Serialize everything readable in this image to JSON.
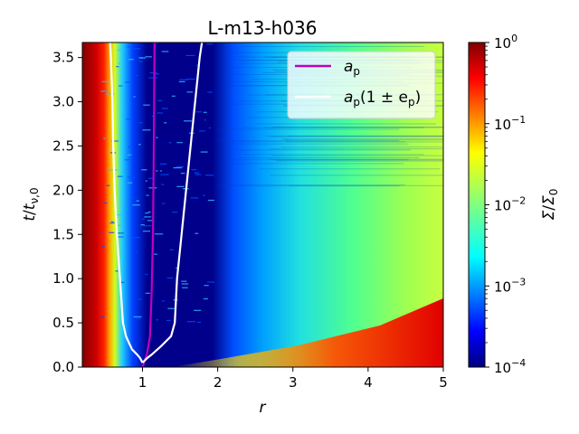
{
  "chart_data": {
    "type": "heatmap",
    "title": "L-m13-h036",
    "xlabel": "r",
    "ylabel": "t/t_{ν,0}",
    "xlim": [
      0.2,
      5.0
    ],
    "ylim": [
      0.0,
      3.67
    ],
    "x_ticks": [
      1,
      2,
      3,
      4,
      5
    ],
    "y_ticks": [
      0.0,
      0.5,
      1.0,
      1.5,
      2.0,
      2.5,
      3.0,
      3.5
    ],
    "colormap": "jet",
    "color_scale": "log",
    "colorbar": {
      "label": "Σ/Σ_0",
      "range": [
        0.0001,
        1.0
      ],
      "ticks": [
        {
          "value": 1.0,
          "base": "10",
          "exp": "0"
        },
        {
          "value": 0.1,
          "base": "10",
          "exp": "−1"
        },
        {
          "value": 0.01,
          "base": "10",
          "exp": "−2"
        },
        {
          "value": 0.001,
          "base": "10",
          "exp": "−3"
        },
        {
          "value": 0.0001,
          "base": "10",
          "exp": "−4"
        }
      ]
    },
    "legend": {
      "position": "top-right",
      "entries": [
        {
          "label_main": "a",
          "label_sub": "p",
          "label_rest": "",
          "color": "#bf00bf"
        },
        {
          "label_main": "a",
          "label_sub": "p",
          "label_rest": "(1 ± e",
          "label_sub2": "p",
          "label_end": ")",
          "color": "#ffffff"
        }
      ]
    },
    "series": [
      {
        "name": "a_p",
        "color": "#bf00bf",
        "points": [
          [
            1.0,
            0.0
          ],
          [
            1.02,
            0.05
          ],
          [
            1.06,
            0.15
          ],
          [
            1.1,
            0.35
          ],
          [
            1.12,
            0.8
          ],
          [
            1.14,
            1.5
          ],
          [
            1.15,
            2.5
          ],
          [
            1.16,
            3.67
          ]
        ]
      },
      {
        "name": "a_p(1-e_p)",
        "color": "#ffffff",
        "points": [
          [
            1.0,
            0.05
          ],
          [
            0.97,
            0.1
          ],
          [
            0.93,
            0.14
          ],
          [
            0.86,
            0.2
          ],
          [
            0.78,
            0.35
          ],
          [
            0.74,
            0.5
          ],
          [
            0.7,
            1.0
          ],
          [
            0.66,
            1.5
          ],
          [
            0.63,
            2.0
          ],
          [
            0.61,
            2.5
          ],
          [
            0.6,
            3.0
          ],
          [
            0.58,
            3.5
          ],
          [
            0.57,
            3.67
          ]
        ]
      },
      {
        "name": "a_p(1+e_p)",
        "color": "#ffffff",
        "points": [
          [
            1.0,
            0.05
          ],
          [
            1.06,
            0.1
          ],
          [
            1.12,
            0.14
          ],
          [
            1.24,
            0.23
          ],
          [
            1.38,
            0.35
          ],
          [
            1.43,
            0.5
          ],
          [
            1.46,
            1.0
          ],
          [
            1.52,
            1.5
          ],
          [
            1.58,
            2.0
          ],
          [
            1.64,
            2.5
          ],
          [
            1.7,
            3.0
          ],
          [
            1.76,
            3.5
          ],
          [
            1.79,
            3.67
          ]
        ]
      }
    ]
  }
}
